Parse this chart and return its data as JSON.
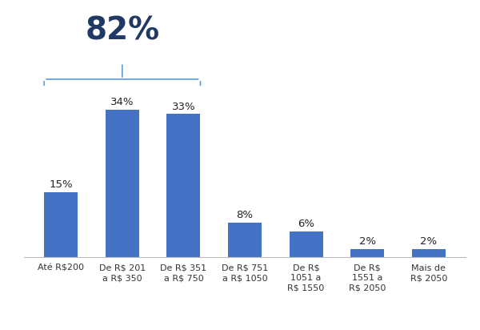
{
  "categories": [
    "Até R$200",
    "De R$ 201\na R$ 350",
    "De R$ 351\na R$ 750",
    "De R$ 751\na R$ 1050",
    "De R$\n1051 a\nR$ 1550",
    "De R$\n1551 a\nR$ 2050",
    "Mais de\nR$ 2050"
  ],
  "values": [
    15,
    34,
    33,
    8,
    6,
    2,
    2
  ],
  "bar_color": "#4472C4",
  "bracket_color": "#5B9BD5",
  "pct_82": "82%",
  "pct_82_color": "#1F3864",
  "background_color": "#FFFFFF",
  "label_fontsize": 9.5,
  "pct_fontsize": 28,
  "tick_fontsize": 8,
  "ylim": [
    0,
    38
  ],
  "figsize": [
    6.0,
    4.12
  ],
  "dpi": 100
}
